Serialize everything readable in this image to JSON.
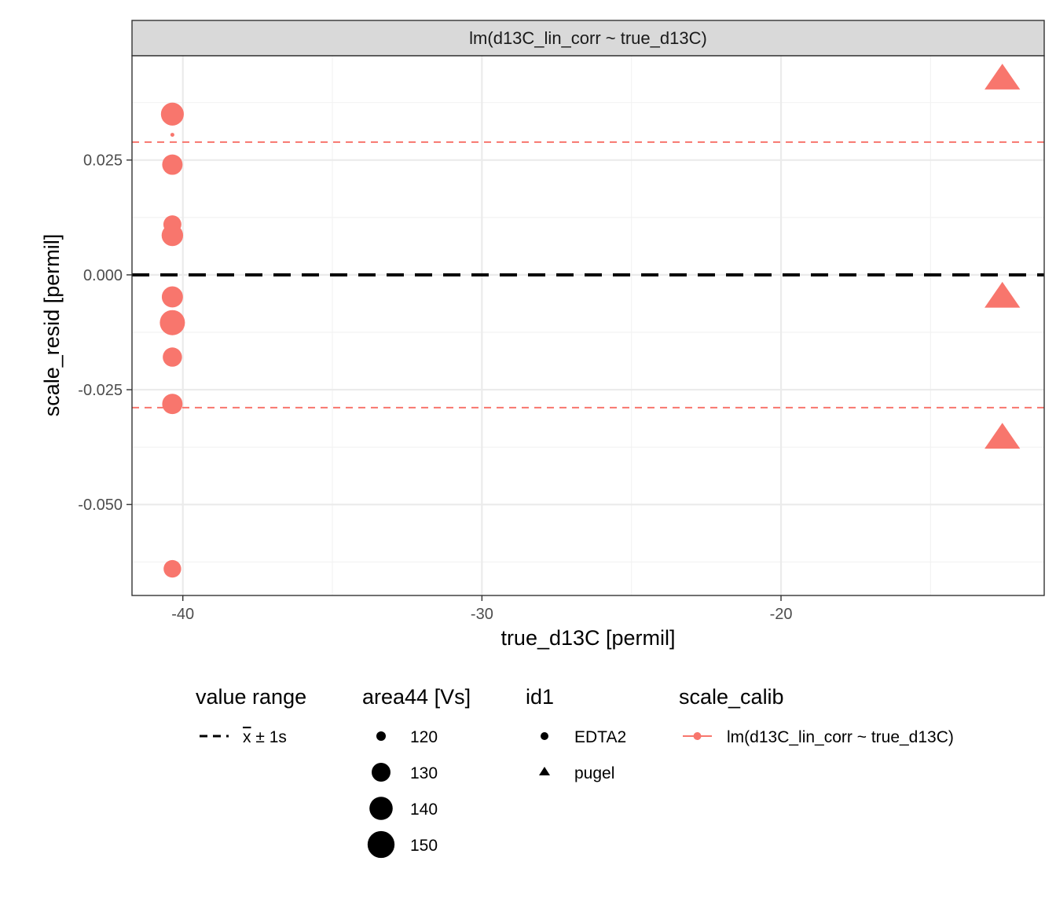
{
  "chart_data": {
    "type": "scatter",
    "facet_label": "lm(d13C_lin_corr ~ true_d13C)",
    "xlabel": "true_d13C [permil]",
    "ylabel": "scale_resid [permil]",
    "xlim": [
      -41.7,
      -11.2
    ],
    "ylim": [
      -0.0698,
      0.0477
    ],
    "x_ticks": [
      -40,
      -30,
      -20
    ],
    "x_tick_labels": [
      "-40",
      "-30",
      "-20"
    ],
    "y_ticks": [
      -0.05,
      -0.025,
      0.0,
      0.025
    ],
    "y_tick_labels": [
      "-0.050",
      "-0.025",
      "0.000",
      "0.025"
    ],
    "grid": true,
    "color": "#F8766D",
    "reference_lines": {
      "zero": 0.0,
      "plus_1s": 0.0289,
      "minus_1s": -0.0289
    },
    "series": [
      {
        "name": "EDTA2",
        "shape": "circle",
        "points": [
          {
            "x": -40.35,
            "y": 0.035,
            "area44": 145
          },
          {
            "x": -40.35,
            "y": 0.0305,
            "area44": 112
          },
          {
            "x": -40.35,
            "y": 0.024,
            "area44": 138
          },
          {
            "x": -40.35,
            "y": 0.011,
            "area44": 132
          },
          {
            "x": -40.35,
            "y": 0.0086,
            "area44": 141
          },
          {
            "x": -40.35,
            "y": -0.0048,
            "area44": 140
          },
          {
            "x": -40.35,
            "y": -0.0104,
            "area44": 152
          },
          {
            "x": -40.35,
            "y": -0.0179,
            "area44": 135
          },
          {
            "x": -40.35,
            "y": -0.0281,
            "area44": 138
          },
          {
            "x": -40.35,
            "y": -0.064,
            "area44": 131
          }
        ]
      },
      {
        "name": "pugel",
        "shape": "triangle",
        "points": [
          {
            "x": -12.6,
            "y": 0.0425,
            "area44": 150
          },
          {
            "x": -12.6,
            "y": -0.005,
            "area44": 150
          },
          {
            "x": -12.6,
            "y": -0.0357,
            "area44": 150
          }
        ]
      }
    ],
    "legend": {
      "position": "bottom",
      "value_range": {
        "title": "value range",
        "label_x": "x",
        "label_rest": " ± 1s"
      },
      "area44": {
        "title": "area44 [Vs]",
        "values": [
          120,
          130,
          140,
          150
        ],
        "labels": [
          "120",
          "130",
          "140",
          "150"
        ]
      },
      "id1": {
        "title": "id1",
        "labels": [
          "EDTA2",
          "pugel"
        ]
      },
      "scale_calib": {
        "title": "scale_calib",
        "labels": [
          "lm(d13C_lin_corr ~ true_d13C)"
        ]
      }
    }
  }
}
